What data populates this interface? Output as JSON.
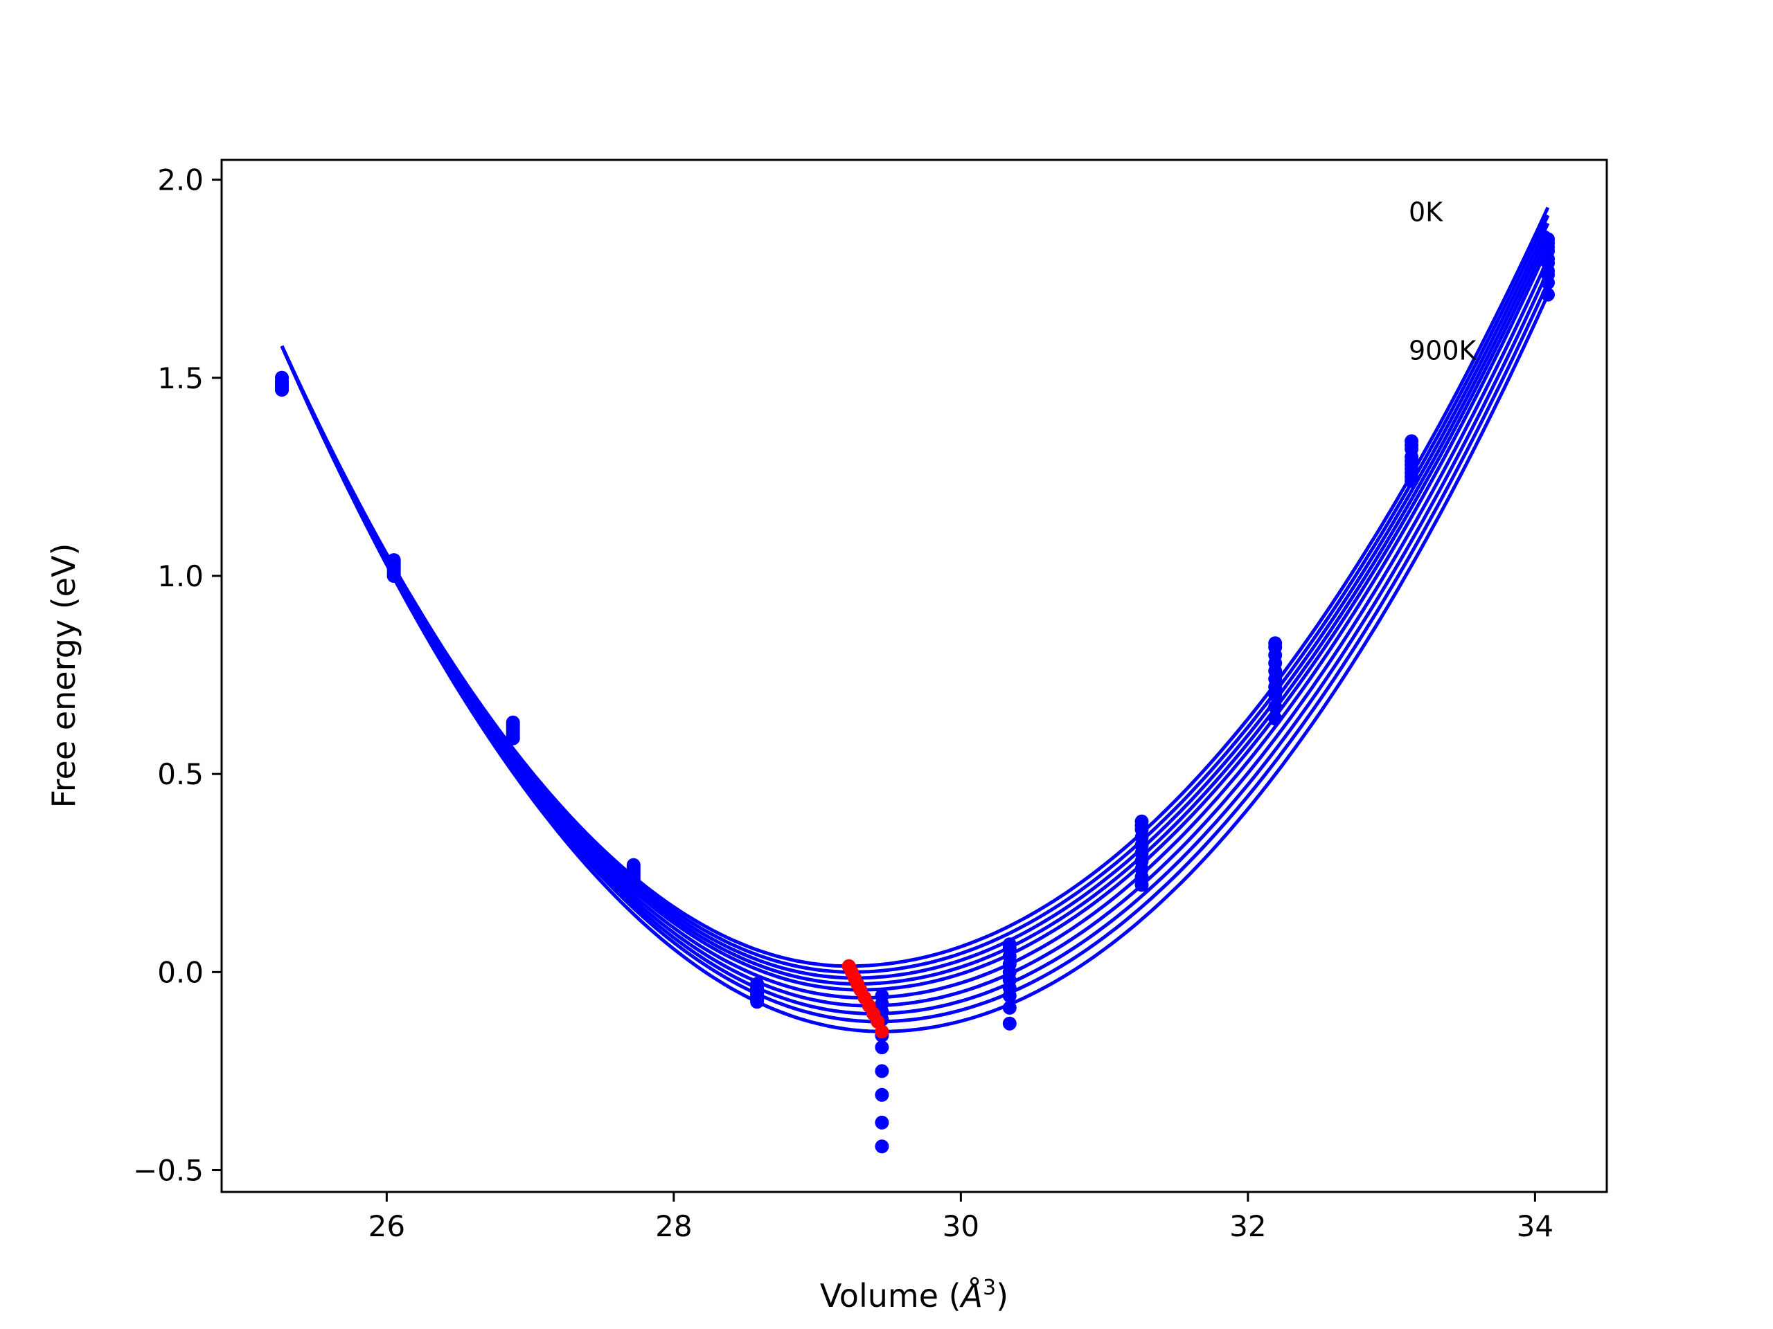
{
  "chart_data": {
    "type": "scatter",
    "title": "",
    "xlabel": "Volume (Å³)",
    "xlabel_parts": {
      "prefix": "Volume (",
      "symbol": "Å",
      "exponent": "3",
      "suffix": ")"
    },
    "ylabel": "Free energy (eV)",
    "xlim": [
      24.85,
      34.5
    ],
    "ylim": [
      -0.555,
      2.05
    ],
    "xticks": [
      26,
      28,
      30,
      32,
      34
    ],
    "xtick_labels": [
      "26",
      "28",
      "30",
      "32",
      "34"
    ],
    "yticks": [
      -0.5,
      0.0,
      0.5,
      1.0,
      1.5,
      2.0
    ],
    "ytick_labels": [
      "−0.5",
      "0.0",
      "0.5",
      "1.0",
      "1.5",
      "2.0"
    ],
    "grid": false,
    "legend": "none",
    "colors": {
      "fit": "#0000ff",
      "points": "#0000ff",
      "minima": "#ff0000"
    },
    "annotations": [
      {
        "text": "0K",
        "x": 33.12,
        "y": 1.92
      },
      {
        "text": "900K",
        "x": 33.12,
        "y": 1.57
      }
    ],
    "volumes": [
      25.27,
      26.05,
      26.88,
      27.72,
      28.58,
      29.45,
      30.34,
      31.26,
      32.19,
      33.14,
      34.09
    ],
    "temperatures_K": [
      0,
      100,
      200,
      300,
      400,
      500,
      600,
      700,
      800,
      900
    ],
    "point_series": [
      {
        "temperature_K": 0,
        "y": [
          1.5,
          1.04,
          0.63,
          0.27,
          -0.03,
          -0.44,
          0.07,
          0.38,
          0.83,
          1.34,
          1.85
        ]
      },
      {
        "temperature_K": 100,
        "y": [
          1.5,
          1.035,
          0.625,
          0.265,
          -0.035,
          -0.38,
          0.06,
          0.37,
          0.82,
          1.33,
          1.84
        ]
      },
      {
        "temperature_K": 200,
        "y": [
          1.49,
          1.03,
          0.62,
          0.26,
          -0.04,
          -0.31,
          0.04,
          0.36,
          0.8,
          1.32,
          1.83
        ]
      },
      {
        "temperature_K": 300,
        "y": [
          1.49,
          1.025,
          0.615,
          0.255,
          -0.045,
          -0.25,
          0.02,
          0.34,
          0.78,
          1.3,
          1.82
        ]
      },
      {
        "temperature_K": 400,
        "y": [
          1.485,
          1.02,
          0.61,
          0.25,
          -0.05,
          -0.19,
          0.0,
          0.32,
          0.76,
          1.29,
          1.8
        ]
      },
      {
        "temperature_K": 500,
        "y": [
          1.48,
          1.015,
          0.605,
          0.245,
          -0.055,
          -0.16,
          -0.02,
          0.3,
          0.74,
          1.28,
          1.79
        ]
      },
      {
        "temperature_K": 600,
        "y": [
          1.48,
          1.01,
          0.6,
          0.24,
          -0.06,
          -0.12,
          -0.04,
          0.28,
          0.72,
          1.27,
          1.77
        ]
      },
      {
        "temperature_K": 700,
        "y": [
          1.475,
          1.005,
          0.595,
          0.235,
          -0.065,
          -0.1,
          -0.06,
          0.26,
          0.7,
          1.26,
          1.76
        ]
      },
      {
        "temperature_K": 800,
        "y": [
          1.47,
          1.0,
          0.59,
          0.23,
          -0.07,
          -0.08,
          -0.09,
          0.24,
          0.67,
          1.25,
          1.74
        ]
      },
      {
        "temperature_K": 900,
        "y": [
          1.47,
          1.0,
          0.59,
          0.22,
          -0.075,
          -0.06,
          -0.13,
          0.22,
          0.64,
          1.24,
          1.71
        ]
      }
    ],
    "fit_curves": {
      "x_range": [
        25.27,
        34.09
      ],
      "start_y": 1.58,
      "end_y": [
        1.93,
        1.91,
        1.89,
        1.87,
        1.85,
        1.83,
        1.8,
        1.77,
        1.74,
        1.71
      ],
      "min_x": [
        29.22,
        29.24,
        29.26,
        29.28,
        29.3,
        29.33,
        29.36,
        29.39,
        29.42,
        29.45
      ],
      "min_y": [
        0.015,
        0.0,
        -0.015,
        -0.03,
        -0.045,
        -0.065,
        -0.085,
        -0.105,
        -0.125,
        -0.15
      ]
    },
    "minima": {
      "x": [
        29.22,
        29.24,
        29.26,
        29.28,
        29.3,
        29.33,
        29.36,
        29.39,
        29.42,
        29.45
      ],
      "y": [
        0.015,
        0.0,
        -0.015,
        -0.03,
        -0.045,
        -0.065,
        -0.085,
        -0.105,
        -0.125,
        -0.15
      ]
    }
  }
}
